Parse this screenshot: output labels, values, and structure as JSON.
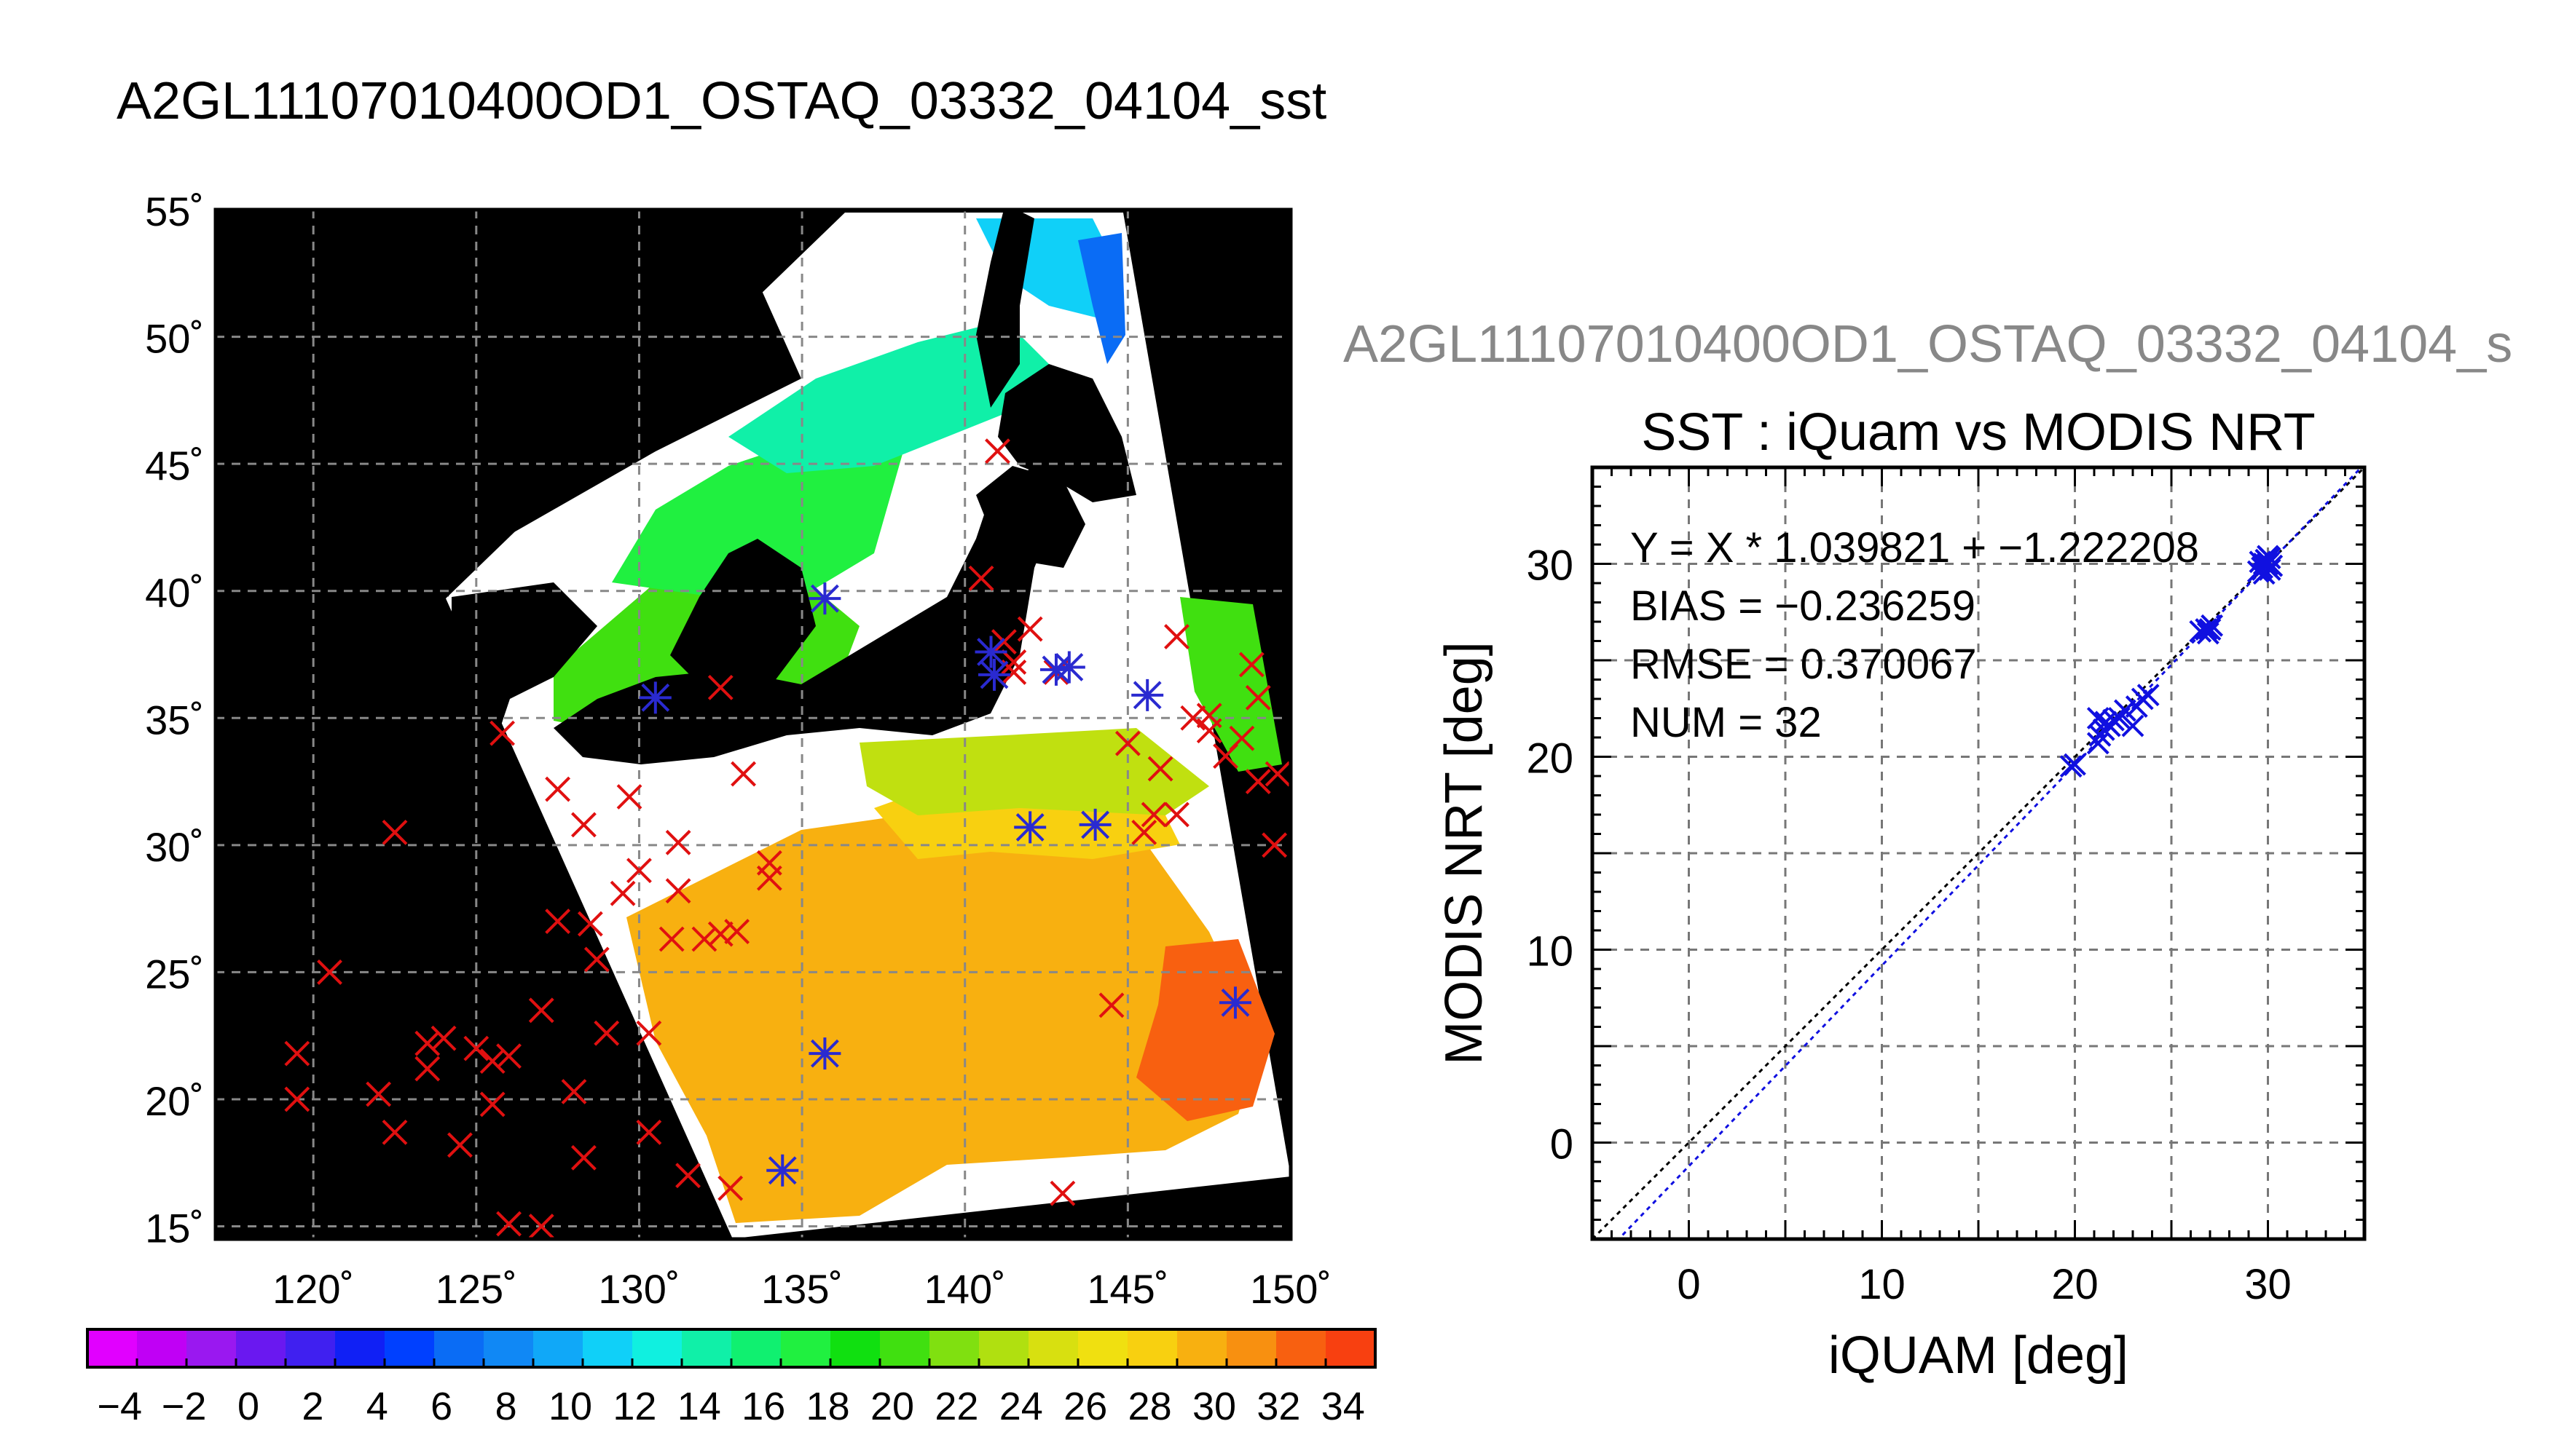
{
  "page_title": "A2GL11107010400OD1_OSTAQ_03332_04104_sst",
  "scatter_header_grey": "A2GL11107010400OD1_OSTAQ_03332_04104_s",
  "colors": {
    "map_background": "#000000",
    "swath_cloud": "#ffffff",
    "buoy_marker": "#e01010",
    "match_marker": "#2a2ad0",
    "scatter_points": "#1010e0",
    "fit_line": "#1010e0",
    "identity_line": "#000000"
  },
  "chart_data": [
    {
      "type": "map",
      "lon_range": [
        117,
        150
      ],
      "lat_range": [
        14.5,
        55
      ],
      "lon_ticks": [
        120,
        125,
        130,
        135,
        140,
        145,
        150
      ],
      "lat_ticks": [
        55,
        50,
        45,
        40,
        35,
        30,
        25,
        20,
        15
      ],
      "lon_tick_labels": [
        "120˚",
        "125˚",
        "130˚",
        "135˚",
        "140˚",
        "145˚",
        "150˚"
      ],
      "lat_tick_labels": [
        "55˚",
        "50˚",
        "45˚",
        "40˚",
        "35˚",
        "30˚",
        "25˚",
        "20˚",
        "15˚"
      ],
      "grid": true,
      "colorbar": {
        "range": [
          -5,
          35
        ],
        "tick_labels": [
          "−4",
          "−2",
          "0",
          "2",
          "4",
          "6",
          "8",
          "10",
          "12",
          "14",
          "16",
          "18",
          "20",
          "22",
          "24",
          "26",
          "28",
          "30",
          "32",
          "34"
        ],
        "bins": [
          "#e100ff",
          "#c000f5",
          "#9a18f0",
          "#6a18f0",
          "#4020f0",
          "#1020f5",
          "#0040ff",
          "#0a6cf5",
          "#1088f5",
          "#10a8f8",
          "#10d0f8",
          "#10f0e0",
          "#10f0a8",
          "#10f070",
          "#20f040",
          "#10e010",
          "#40e010",
          "#80e010",
          "#b0e010",
          "#d8e010",
          "#f0e010",
          "#f8d010",
          "#f8b010",
          "#f89010",
          "#f86010",
          "#f84010"
        ]
      },
      "buoys": [
        [
          119.5,
          21.8
        ],
        [
          119.5,
          20
        ],
        [
          120.5,
          25
        ],
        [
          122.5,
          30.5
        ],
        [
          122,
          20.2
        ],
        [
          122.5,
          18.7
        ],
        [
          123.5,
          22.2
        ],
        [
          123.5,
          21.2
        ],
        [
          124,
          22.4
        ],
        [
          124.5,
          18.2
        ],
        [
          125,
          22
        ],
        [
          125.5,
          21.5
        ],
        [
          125.5,
          19.8
        ],
        [
          125.8,
          34.4
        ],
        [
          126,
          21.7
        ],
        [
          126,
          15.1
        ],
        [
          127,
          15
        ],
        [
          127,
          23.5
        ],
        [
          127.5,
          27
        ],
        [
          127.5,
          32.2
        ],
        [
          128,
          20.3
        ],
        [
          128.3,
          30.8
        ],
        [
          128.5,
          26.9
        ],
        [
          128.7,
          25.5
        ],
        [
          128.3,
          17.7
        ],
        [
          129,
          22.6
        ],
        [
          129.5,
          28.1
        ],
        [
          129.7,
          31.9
        ],
        [
          130,
          29
        ],
        [
          130.3,
          22.6
        ],
        [
          130.3,
          18.7
        ],
        [
          131,
          26.3
        ],
        [
          131.2,
          28.2
        ],
        [
          131.2,
          30.1
        ],
        [
          131.5,
          17
        ],
        [
          132,
          26.3
        ],
        [
          132.5,
          36.2
        ],
        [
          132.5,
          26.5
        ],
        [
          132.8,
          16.5
        ],
        [
          133,
          26.6
        ],
        [
          133.2,
          32.8
        ],
        [
          134,
          28.7
        ],
        [
          134,
          29.3
        ],
        [
          141,
          45.5
        ],
        [
          140.5,
          40.5
        ],
        [
          141.2,
          38
        ],
        [
          141.5,
          37.2
        ],
        [
          141.5,
          36.8
        ],
        [
          142,
          38.5
        ],
        [
          142.8,
          36.8
        ],
        [
          143,
          16.3
        ],
        [
          144.5,
          23.7
        ],
        [
          145,
          34
        ],
        [
          145.5,
          30.5
        ],
        [
          145.8,
          31.2
        ],
        [
          146,
          33
        ],
        [
          146.5,
          31.2
        ],
        [
          146.5,
          38.2
        ],
        [
          147,
          35
        ],
        [
          147.5,
          34.5
        ],
        [
          147.5,
          35.1
        ],
        [
          148,
          33.5
        ],
        [
          148.5,
          34.2
        ],
        [
          148.8,
          37.1
        ],
        [
          149,
          35.8
        ],
        [
          149,
          32.5
        ],
        [
          149.5,
          30
        ],
        [
          149.6,
          32.8
        ]
      ],
      "matches": [
        [
          135.7,
          39.7
        ],
        [
          130.5,
          35.8
        ],
        [
          135.7,
          21.8
        ],
        [
          134.4,
          17.2
        ],
        [
          140.8,
          37.6
        ],
        [
          140.9,
          36.7
        ],
        [
          142.8,
          36.9
        ],
        [
          143.2,
          37
        ],
        [
          144,
          30.8
        ],
        [
          142,
          30.7
        ],
        [
          145.6,
          35.9
        ],
        [
          148.3,
          23.8
        ]
      ]
    },
    {
      "type": "scatter",
      "title": "SST : iQuam vs MODIS NRT",
      "xlabel": "iQUAM [deg]",
      "ylabel": "MODIS NRT [deg]",
      "xlim": [
        -5,
        35
      ],
      "ylim": [
        -5,
        35
      ],
      "x_ticks": [
        0,
        10,
        20,
        30
      ],
      "y_ticks": [
        0,
        10,
        20,
        30
      ],
      "grid": true,
      "stats": {
        "equation": "Y = X * 1.039821 + −1.222208",
        "bias": "BIAS = −0.236259",
        "rmse": "RMSE = 0.370067",
        "num": "NUM = 32"
      },
      "fit": {
        "slope": 1.039821,
        "intercept": -1.222208
      },
      "points": [
        [
          19.8,
          19.5
        ],
        [
          20,
          19.6
        ],
        [
          21.2,
          20.7
        ],
        [
          21.3,
          21.1
        ],
        [
          21.5,
          21.4
        ],
        [
          21.6,
          21.8
        ],
        [
          21.2,
          22
        ],
        [
          21.8,
          21.6
        ],
        [
          22,
          21.9
        ],
        [
          22.3,
          22.0
        ],
        [
          22.6,
          22.4
        ],
        [
          23,
          21.6
        ],
        [
          23.2,
          22.6
        ],
        [
          23.5,
          23.0
        ],
        [
          23.8,
          23.2
        ],
        [
          26.5,
          26.5
        ],
        [
          26.8,
          26.6
        ],
        [
          27,
          26.6
        ],
        [
          27.1,
          26.8
        ],
        [
          26.9,
          26.4
        ],
        [
          29.5,
          29.6
        ],
        [
          29.7,
          29.8
        ],
        [
          29.8,
          30.0
        ],
        [
          29.9,
          30.2
        ],
        [
          30,
          30.4
        ],
        [
          30.1,
          29.7
        ],
        [
          30.2,
          29.9
        ],
        [
          29.6,
          30.1
        ],
        [
          30,
          30.0
        ],
        [
          29.8,
          29.5
        ],
        [
          30.1,
          30.3
        ],
        [
          29.9,
          29.9
        ]
      ]
    }
  ]
}
